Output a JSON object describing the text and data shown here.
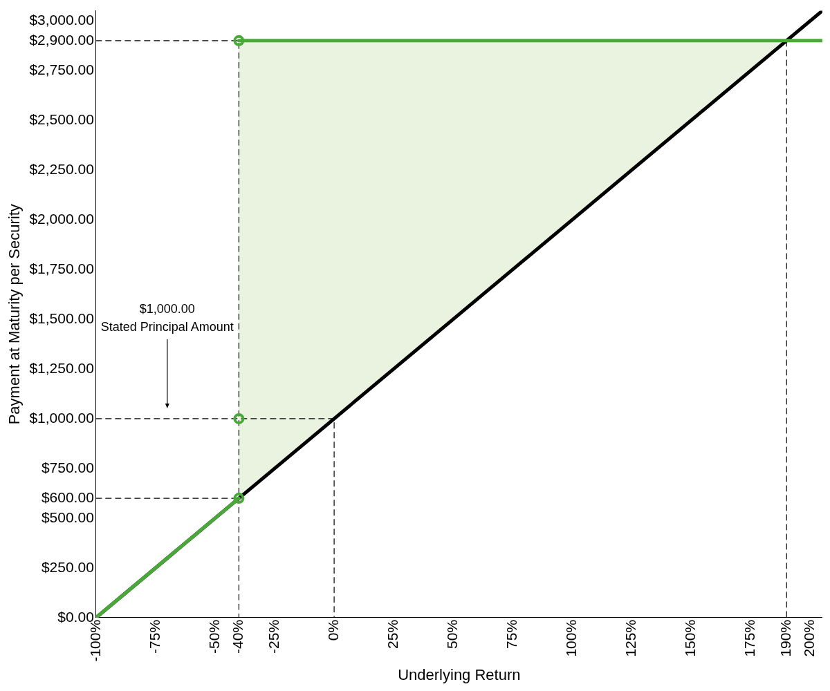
{
  "chart_data": {
    "type": "line",
    "xlabel": "Underlying Return",
    "ylabel": "Payment at Maturity per Security",
    "xlim": [
      -100,
      205
    ],
    "ylim": [
      0,
      3050
    ],
    "xticks": [
      {
        "value": -100,
        "label": "-100%"
      },
      {
        "value": -75,
        "label": "-75%"
      },
      {
        "value": -50,
        "label": "-50%"
      },
      {
        "value": -40,
        "label": "-40%"
      },
      {
        "value": -25,
        "label": "-25%"
      },
      {
        "value": 0,
        "label": "0%"
      },
      {
        "value": 25,
        "label": "25%"
      },
      {
        "value": 50,
        "label": "50%"
      },
      {
        "value": 75,
        "label": "75%"
      },
      {
        "value": 100,
        "label": "100%"
      },
      {
        "value": 125,
        "label": "125%"
      },
      {
        "value": 150,
        "label": "150%"
      },
      {
        "value": 175,
        "label": "175%"
      },
      {
        "value": 190,
        "label": "190%"
      },
      {
        "value": 200,
        "label": "200%"
      }
    ],
    "yticks": [
      {
        "value": 0,
        "label": "$0.00"
      },
      {
        "value": 250,
        "label": "$250.00"
      },
      {
        "value": 500,
        "label": "$500.00"
      },
      {
        "value": 600,
        "label": "$600.00"
      },
      {
        "value": 750,
        "label": "$750.00"
      },
      {
        "value": 1000,
        "label": "$1,000.00"
      },
      {
        "value": 1250,
        "label": "$1,250.00"
      },
      {
        "value": 1500,
        "label": "$1,500.00"
      },
      {
        "value": 1750,
        "label": "$1,750.00"
      },
      {
        "value": 2000,
        "label": "$2,000.00"
      },
      {
        "value": 2250,
        "label": "$2,250.00"
      },
      {
        "value": 2500,
        "label": "$2,500.00"
      },
      {
        "value": 2750,
        "label": "$2,750.00"
      },
      {
        "value": 2900,
        "label": "$2,900.00"
      },
      {
        "value": 3000,
        "label": "$3,000.00"
      }
    ],
    "grid": false,
    "legend": false,
    "series": [
      {
        "type": "area",
        "color": "#e9f3df",
        "x": [
          -40,
          -40,
          190
        ],
        "values": [
          600,
          2900,
          2900
        ]
      },
      {
        "line_style": "dashed",
        "color": "#000000",
        "x": [
          -100,
          -40,
          -40
        ],
        "values": [
          2900,
          2900,
          0
        ]
      },
      {
        "line_style": "dashed",
        "color": "#000000",
        "x": [
          -100,
          0,
          0
        ],
        "values": [
          1000,
          1000,
          0
        ]
      },
      {
        "line_style": "dashed",
        "color": "#000000",
        "x": [
          -100,
          -40
        ],
        "values": [
          600,
          600
        ]
      },
      {
        "line_style": "dashed",
        "color": "#000000",
        "x": [
          190,
          190
        ],
        "values": [
          2900,
          0
        ]
      },
      {
        "line_style": "solid",
        "color": "#000000",
        "x": [
          -100,
          205
        ],
        "values": [
          0,
          3050
        ]
      },
      {
        "line_style": "solid",
        "color": "#4aa83a",
        "x": [
          -100,
          -40
        ],
        "values": [
          0,
          600
        ]
      },
      {
        "line_style": "solid",
        "color": "#4aa83a",
        "x": [
          -40,
          205
        ],
        "values": [
          2900,
          2900
        ]
      },
      {
        "type": "scatter",
        "marker": "circle",
        "color": "#4aa83a",
        "x": [
          -40,
          -40,
          -40
        ],
        "values": [
          2900,
          1000,
          600
        ]
      }
    ],
    "annotations": [
      "$1,000.00\nStated Principal Amount"
    ]
  }
}
